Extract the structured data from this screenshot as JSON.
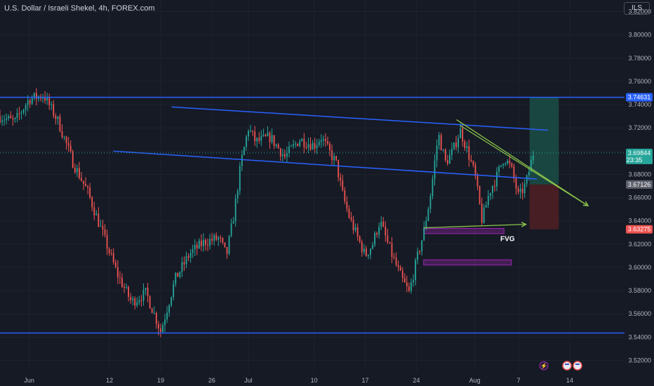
{
  "header": {
    "title": "U.S. Dollar / Israeli Shekel, 4h, FOREX.com",
    "currency_button": "ILS"
  },
  "colors": {
    "background": "#161a25",
    "up_candle": "#26a69a",
    "down_candle": "#ef5350",
    "blue_line": "#2962ff",
    "green_arrow": "#8bc34a",
    "fvg_box": "#9c27b0",
    "tp_zone": "#1b4b45",
    "sl_zone": "#4d1f24",
    "axis_text": "#b2b5be",
    "grid": "#1f232e"
  },
  "chart_data": {
    "type": "candlestick",
    "title": "U.S. Dollar / Israeli Shekel, 4h, FOREX.com",
    "ylim": [
      3.51,
      3.83
    ],
    "y_ticks": [
      "3.82000",
      "3.80000",
      "3.78000",
      "3.76000",
      "3.74000",
      "3.72000",
      "3.70000",
      "3.68000",
      "3.66000",
      "3.64000",
      "3.62000",
      "3.60000",
      "3.58000",
      "3.56000",
      "3.54000",
      "3.52000"
    ],
    "y_tick_values": [
      3.82,
      3.8,
      3.78,
      3.76,
      3.74,
      3.72,
      3.7,
      3.68,
      3.66,
      3.64,
      3.62,
      3.6,
      3.58,
      3.56,
      3.54,
      3.52
    ],
    "x_ticks": [
      "Jun",
      "12",
      "19",
      "26",
      "Jul",
      "10",
      "17",
      "24",
      "Aug",
      "7",
      "14"
    ],
    "x_tick_day_index": [
      0,
      11,
      18,
      25,
      30,
      39,
      46,
      53,
      61,
      67,
      74
    ],
    "x_range_days": [
      -4.0,
      81.5
    ],
    "price_labels": [
      {
        "text": "3.74631",
        "value": 3.74631,
        "color": "#2962ff"
      },
      {
        "text": "3.69844",
        "sub": "23:35",
        "value": 3.69844,
        "color": "#26a69a"
      },
      {
        "text": "3.67126",
        "value": 3.67126,
        "color": "#5d606b"
      },
      {
        "text": "3.63275",
        "value": 3.63275,
        "color": "#ef5350"
      }
    ],
    "anchors": [
      [
        -4.0,
        3.73
      ],
      [
        -2,
        3.725
      ],
      [
        0,
        3.745
      ],
      [
        2,
        3.748
      ],
      [
        4,
        3.725
      ],
      [
        6,
        3.69
      ],
      [
        8,
        3.665
      ],
      [
        10,
        3.63
      ],
      [
        12,
        3.595
      ],
      [
        14,
        3.57
      ],
      [
        16,
        3.578
      ],
      [
        18,
        3.545
      ],
      [
        20,
        3.59
      ],
      [
        22,
        3.612
      ],
      [
        24,
        3.622
      ],
      [
        26,
        3.625
      ],
      [
        27,
        3.61
      ],
      [
        28,
        3.645
      ],
      [
        29,
        3.69
      ],
      [
        30,
        3.72
      ],
      [
        31,
        3.708
      ],
      [
        33,
        3.712
      ],
      [
        35,
        3.695
      ],
      [
        37,
        3.71
      ],
      [
        39,
        3.705
      ],
      [
        40,
        3.712
      ],
      [
        41,
        3.7
      ],
      [
        42,
        3.69
      ],
      [
        43,
        3.66
      ],
      [
        44,
        3.64
      ],
      [
        45,
        3.625
      ],
      [
        46,
        3.61
      ],
      [
        47,
        3.62
      ],
      [
        48,
        3.64
      ],
      [
        49,
        3.622
      ],
      [
        50,
        3.605
      ],
      [
        51,
        3.59
      ],
      [
        52,
        3.578
      ],
      [
        53,
        3.605
      ],
      [
        54,
        3.63
      ],
      [
        55,
        3.665
      ],
      [
        56,
        3.715
      ],
      [
        57,
        3.69
      ],
      [
        58,
        3.7
      ],
      [
        59,
        3.718
      ],
      [
        60,
        3.7
      ],
      [
        61,
        3.68
      ],
      [
        62,
        3.64
      ],
      [
        63,
        3.665
      ],
      [
        64,
        3.678
      ],
      [
        65,
        3.695
      ],
      [
        66,
        3.685
      ],
      [
        67,
        3.66
      ],
      [
        68,
        3.672
      ],
      [
        69,
        3.698
      ]
    ],
    "annotations": {
      "fvg_label": "FVG",
      "top_line": {
        "from": [
          -4.0,
          3.74631
        ],
        "to": [
          81.5,
          3.74631
        ]
      },
      "bottom_line": {
        "from": [
          -4.0,
          3.5435
        ],
        "to": [
          81.5,
          3.5435
        ]
      },
      "channel_upper": {
        "from": [
          19.5,
          3.738
        ],
        "to": [
          71,
          3.718
        ]
      },
      "channel_lower": {
        "from": [
          11.5,
          3.7
        ],
        "to": [
          69.5,
          3.676
        ]
      },
      "arrow_1": {
        "from": [
          58.5,
          3.727
        ],
        "to": [
          76.5,
          3.653
        ]
      },
      "arrow_2": {
        "from": [
          59,
          3.722
        ],
        "to": [
          76.5,
          3.653
        ]
      },
      "fvg_arrow": {
        "from": [
          54,
          3.634
        ],
        "to": [
          68,
          3.637
        ]
      },
      "fvg_box_1": {
        "x0": 54,
        "x1": 65,
        "y0": 3.6335,
        "y1": 3.629
      },
      "fvg_box_2": {
        "x0": 54,
        "x1": 66,
        "y0": 3.6065,
        "y1": 3.602
      },
      "tp_zone": {
        "x0": 68.5,
        "x1": 72.5,
        "y0": 3.74631,
        "y1": 3.67126
      },
      "sl_zone": {
        "x0": 68.5,
        "x1": 72.5,
        "y0": 3.67126,
        "y1": 3.63275
      }
    },
    "candle_count": 250,
    "events": [
      "flash",
      "us-flag",
      "us-flag"
    ]
  }
}
